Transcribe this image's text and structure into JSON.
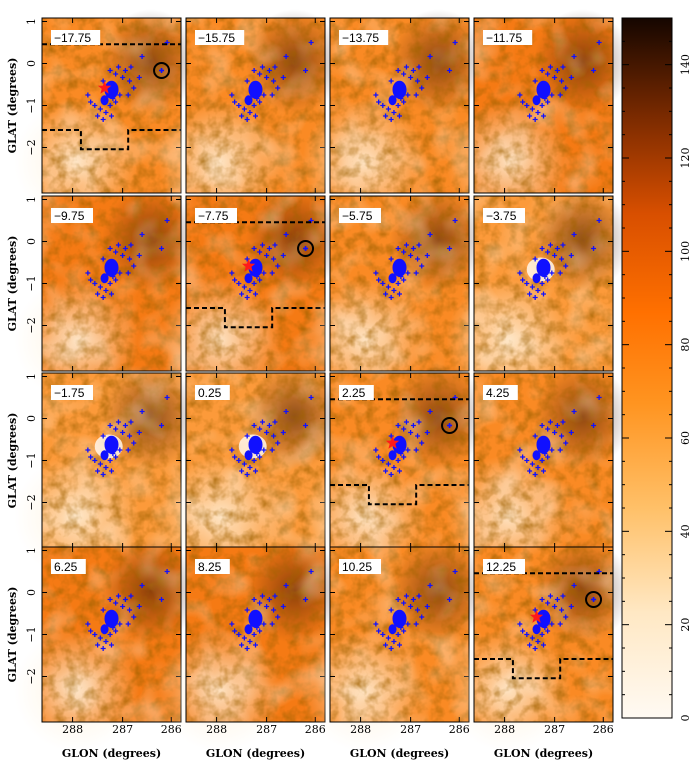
{
  "figure": {
    "y_axis_title": "GLAT (degrees)",
    "x_axis_title": "GLON (degrees)",
    "x_tick_labels": [
      "288",
      "287",
      "286"
    ],
    "y_tick_labels": [
      "1",
      "0",
      "−1",
      "−2"
    ],
    "colorbar_ticks": [
      "0",
      "20",
      "40",
      "60",
      "80",
      "100",
      "120",
      "140"
    ],
    "colorbar_range": [
      0,
      150
    ],
    "colors": {
      "map_low": "#fffaf3",
      "map_mid": "#ff7800",
      "map_high": "#1a0700",
      "source_marker": "#1010ff",
      "region_marker": "#ff1a1a",
      "contour": "#000000"
    },
    "panels": [
      {
        "label": "−17.75",
        "outline": true,
        "circle": true,
        "star": true,
        "tone": 0.55
      },
      {
        "label": "−15.75",
        "outline": false,
        "circle": false,
        "star": false,
        "tone": 0.55
      },
      {
        "label": "−13.75",
        "outline": false,
        "circle": false,
        "star": false,
        "tone": 0.58
      },
      {
        "label": "−11.75",
        "outline": false,
        "circle": false,
        "star": false,
        "tone": 0.6
      },
      {
        "label": "−9.75",
        "outline": false,
        "circle": false,
        "star": false,
        "tone": 0.6
      },
      {
        "label": "−7.75",
        "outline": true,
        "circle": true,
        "star": true,
        "tone": 0.6
      },
      {
        "label": "−5.75",
        "outline": false,
        "circle": false,
        "star": false,
        "tone": 0.55
      },
      {
        "label": "−3.75",
        "outline": false,
        "circle": false,
        "star": false,
        "tone": 0.48
      },
      {
        "label": "−1.75",
        "outline": false,
        "circle": false,
        "star": false,
        "tone": 0.5
      },
      {
        "label": "0.25",
        "outline": false,
        "circle": false,
        "star": false,
        "tone": 0.52
      },
      {
        "label": "2.25",
        "outline": true,
        "circle": true,
        "star": true,
        "tone": 0.55
      },
      {
        "label": "4.25",
        "outline": false,
        "circle": false,
        "star": false,
        "tone": 0.56
      },
      {
        "label": "6.25",
        "outline": false,
        "circle": false,
        "star": false,
        "tone": 0.6
      },
      {
        "label": "8.25",
        "outline": false,
        "circle": false,
        "star": false,
        "tone": 0.62
      },
      {
        "label": "10.25",
        "outline": false,
        "circle": false,
        "star": false,
        "tone": 0.58
      },
      {
        "label": "12.25",
        "outline": true,
        "circle": true,
        "star": true,
        "tone": 0.58
      }
    ]
  }
}
